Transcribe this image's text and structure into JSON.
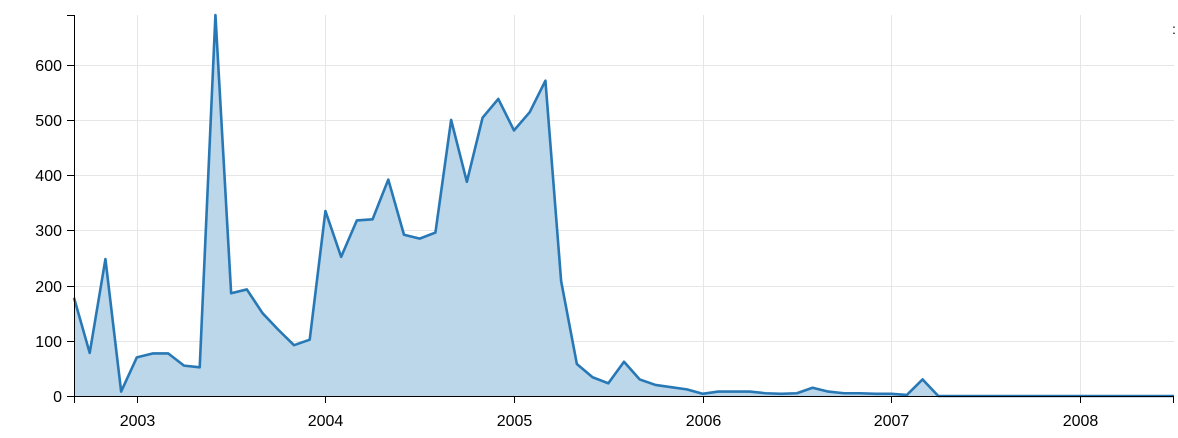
{
  "chart_data": {
    "type": "area",
    "title": "",
    "xlabel": "",
    "ylabel": "",
    "x_ticks": [
      "2003",
      "2004",
      "2005",
      "2006",
      "2007",
      "2008"
    ],
    "y_ticks": [
      "0",
      "100",
      "200",
      "300",
      "400",
      "500",
      "600"
    ],
    "xlim": [
      "2002-09",
      "2008-07"
    ],
    "ylim": [
      0,
      690
    ],
    "grid": true,
    "legend": "none",
    "colors": {
      "line": "#2878b5",
      "fill": "#bcd6ea"
    },
    "x": [
      "2002-09",
      "2002-10",
      "2002-11",
      "2002-12",
      "2003-01",
      "2003-02",
      "2003-03",
      "2003-04",
      "2003-05",
      "2003-06",
      "2003-07",
      "2003-08",
      "2003-09",
      "2003-10",
      "2003-11",
      "2003-12",
      "2004-01",
      "2004-02",
      "2004-03",
      "2004-04",
      "2004-05",
      "2004-06",
      "2004-07",
      "2004-08",
      "2004-09",
      "2004-10",
      "2004-11",
      "2004-12",
      "2005-01",
      "2005-02",
      "2005-03",
      "2005-04",
      "2005-05",
      "2005-06",
      "2005-07",
      "2005-08",
      "2005-09",
      "2005-10",
      "2005-11",
      "2005-12",
      "2006-01",
      "2006-02",
      "2006-03",
      "2006-04",
      "2006-05",
      "2006-06",
      "2006-07",
      "2006-08",
      "2006-09",
      "2006-10",
      "2006-11",
      "2006-12",
      "2007-01",
      "2007-02",
      "2007-03",
      "2007-04",
      "2007-05",
      "2007-06",
      "2007-07",
      "2007-08",
      "2007-09",
      "2007-10",
      "2007-11",
      "2007-12",
      "2008-01",
      "2008-02",
      "2008-03",
      "2008-04",
      "2008-05",
      "2008-06",
      "2008-07"
    ],
    "values": [
      178,
      78,
      248,
      8,
      70,
      77,
      77,
      55,
      52,
      690,
      186,
      193,
      150,
      120,
      92,
      102,
      335,
      252,
      318,
      320,
      392,
      292,
      285,
      296,
      500,
      388,
      504,
      538,
      481,
      514,
      571,
      208,
      58,
      34,
      23,
      62,
      30,
      20,
      16,
      12,
      4,
      8,
      8,
      8,
      5,
      4,
      5,
      15,
      8,
      5,
      5,
      4,
      4,
      2,
      30,
      0,
      0,
      0,
      0,
      0,
      0,
      0,
      0,
      0,
      0,
      0,
      0,
      0,
      0,
      0,
      0
    ]
  },
  "edge_glyph": ":"
}
